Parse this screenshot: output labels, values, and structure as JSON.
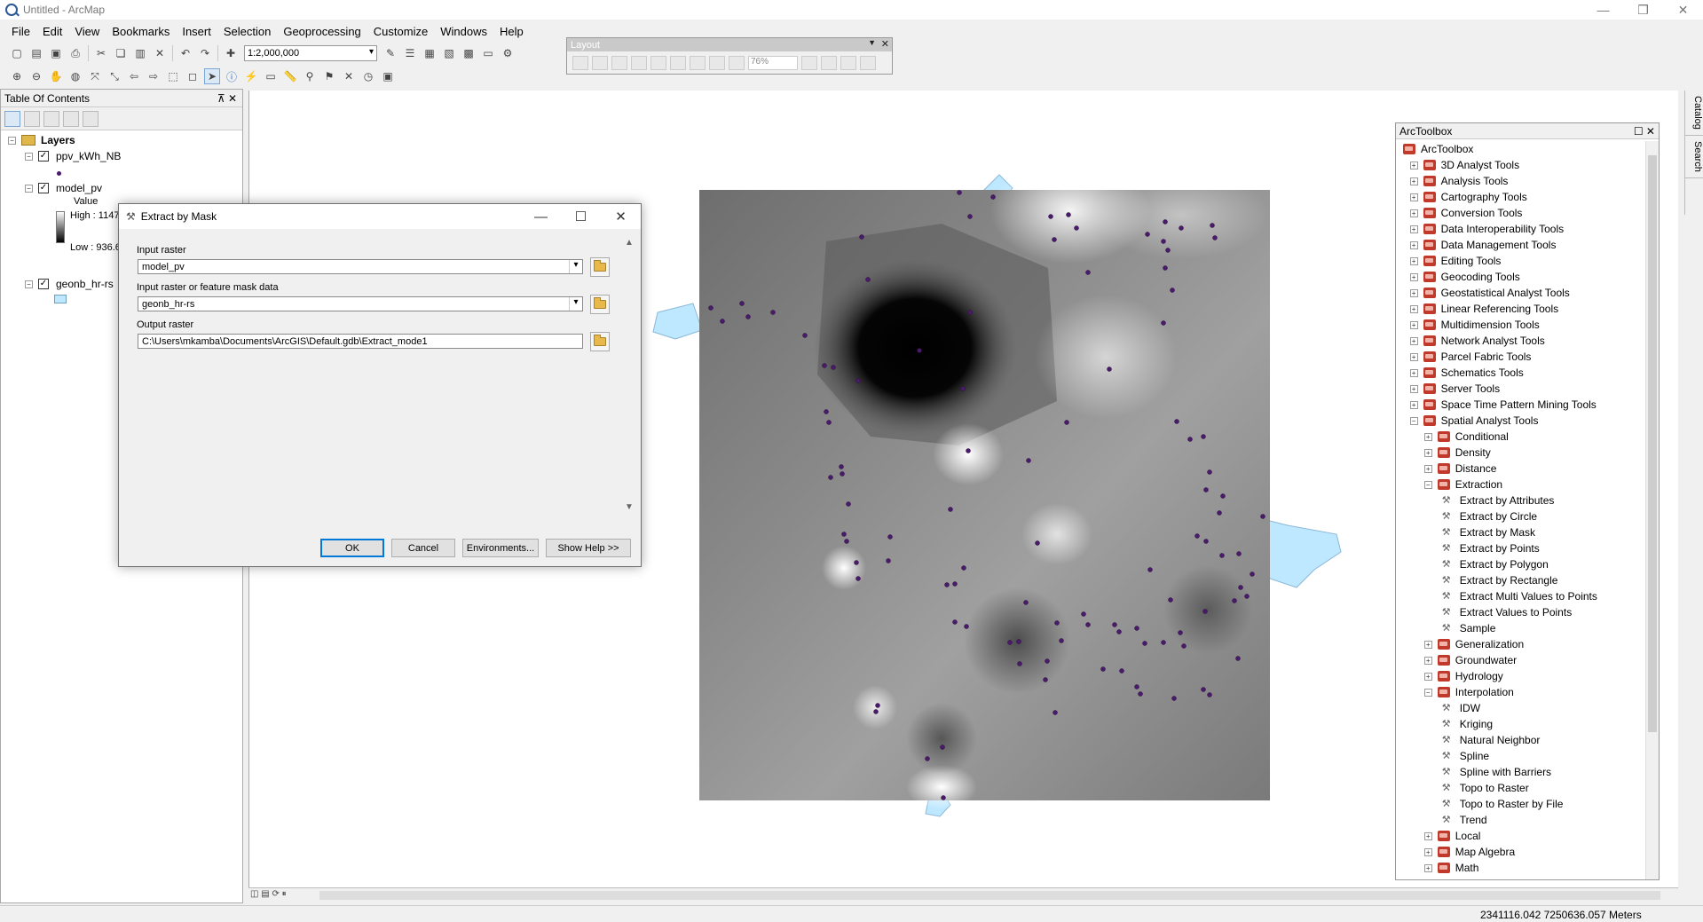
{
  "window": {
    "title": "Untitled - ArcMap",
    "minimize": "—",
    "maximize": "❐",
    "close": "✕"
  },
  "menu": [
    "File",
    "Edit",
    "View",
    "Bookmarks",
    "Insert",
    "Selection",
    "Geoprocessing",
    "Customize",
    "Windows",
    "Help"
  ],
  "toolbar": {
    "scale": "1:2,000,000"
  },
  "layout_toolbar": {
    "title": "Layout",
    "zoom": "76%"
  },
  "toc": {
    "title": "Table Of Contents",
    "root": "Layers",
    "layers": [
      {
        "name": "ppv_kWh_NB"
      },
      {
        "name": "model_pv",
        "legend_title": "Value",
        "high": "High : 1147",
        "low": "Low : 936.6"
      },
      {
        "name": "geonb_hr-rs"
      }
    ]
  },
  "dialog": {
    "title": "Extract by Mask",
    "input_raster_label": "Input raster",
    "input_raster_value": "model_pv",
    "mask_label": "Input raster or feature mask data",
    "mask_value": "geonb_hr-rs",
    "output_label": "Output raster",
    "output_value": "C:\\Users\\mkamba\\Documents\\ArcGIS\\Default.gdb\\Extract_mode1",
    "ok": "OK",
    "cancel": "Cancel",
    "environments": "Environments...",
    "show_help": "Show Help >>"
  },
  "toolbox": {
    "title": "ArcToolbox",
    "root": "ArcToolbox",
    "toolsets": [
      "3D Analyst Tools",
      "Analysis Tools",
      "Cartography Tools",
      "Conversion Tools",
      "Data Interoperability Tools",
      "Data Management Tools",
      "Editing Tools",
      "Geocoding Tools",
      "Geostatistical Analyst Tools",
      "Linear Referencing Tools",
      "Multidimension Tools",
      "Network Analyst Tools",
      "Parcel Fabric Tools",
      "Schematics Tools",
      "Server Tools",
      "Space Time Pattern Mining Tools",
      "Spatial Analyst Tools"
    ],
    "spatial_children": {
      "before_extraction": [
        "Conditional",
        "Density",
        "Distance"
      ],
      "extraction": "Extraction",
      "extraction_tools": [
        "Extract by Attributes",
        "Extract by Circle",
        "Extract by Mask",
        "Extract by Points",
        "Extract by Polygon",
        "Extract by Rectangle",
        "Extract Multi Values to Points",
        "Extract Values to Points",
        "Sample"
      ],
      "between": [
        "Generalization",
        "Groundwater",
        "Hydrology"
      ],
      "interpolation": "Interpolation",
      "interpolation_tools": [
        "IDW",
        "Kriging",
        "Natural Neighbor",
        "Spline",
        "Spline with Barriers",
        "Topo to Raster",
        "Topo to Raster by File",
        "Trend"
      ],
      "after": [
        "Local",
        "Map Algebra",
        "Math"
      ]
    }
  },
  "side_tabs": [
    "Catalog",
    "Search"
  ],
  "status": {
    "coordinates": "2341116.042  7250636.057 Meters"
  }
}
